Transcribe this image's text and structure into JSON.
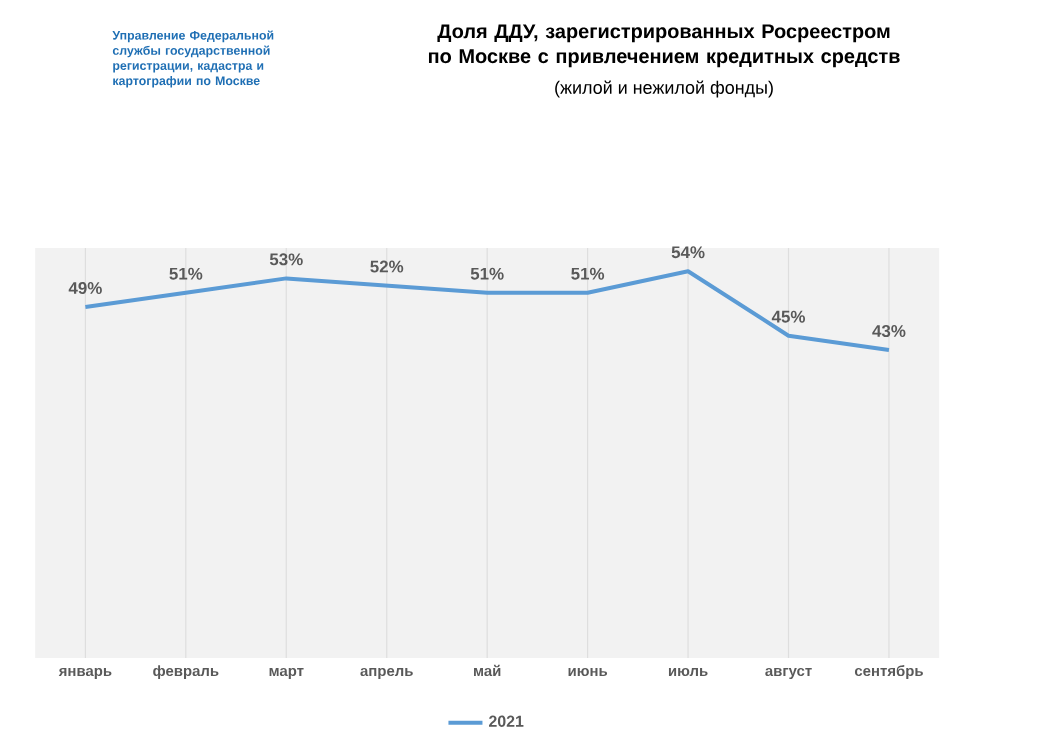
{
  "chart_data": {
    "type": "line",
    "title": "Доля ДДУ, зарегистрированных Росреестром по Москве с привлечением кредитных средств",
    "subtitle": "(жилой и нежилой фонды)",
    "annotations": [
      "Управление Федеральной службы государственной регистрации, кадастра и картографии по Москве"
    ],
    "categories": [
      "январь",
      "февраль",
      "март",
      "апрель",
      "май",
      "июнь",
      "июль",
      "август",
      "сентябрь"
    ],
    "series": [
      {
        "name": "2021",
        "color": "#5b9bd5",
        "values": [
          49,
          51,
          53,
          52,
          51,
          51,
          54,
          45,
          43
        ],
        "value_labels": [
          "49%",
          "51%",
          "53%",
          "52%",
          "51%",
          "51%",
          "54%",
          "45%",
          "43%"
        ]
      }
    ],
    "tick_labels": "x",
    "grid": "x",
    "legend": "bottom",
    "marker": "none",
    "line_style": "solid"
  }
}
